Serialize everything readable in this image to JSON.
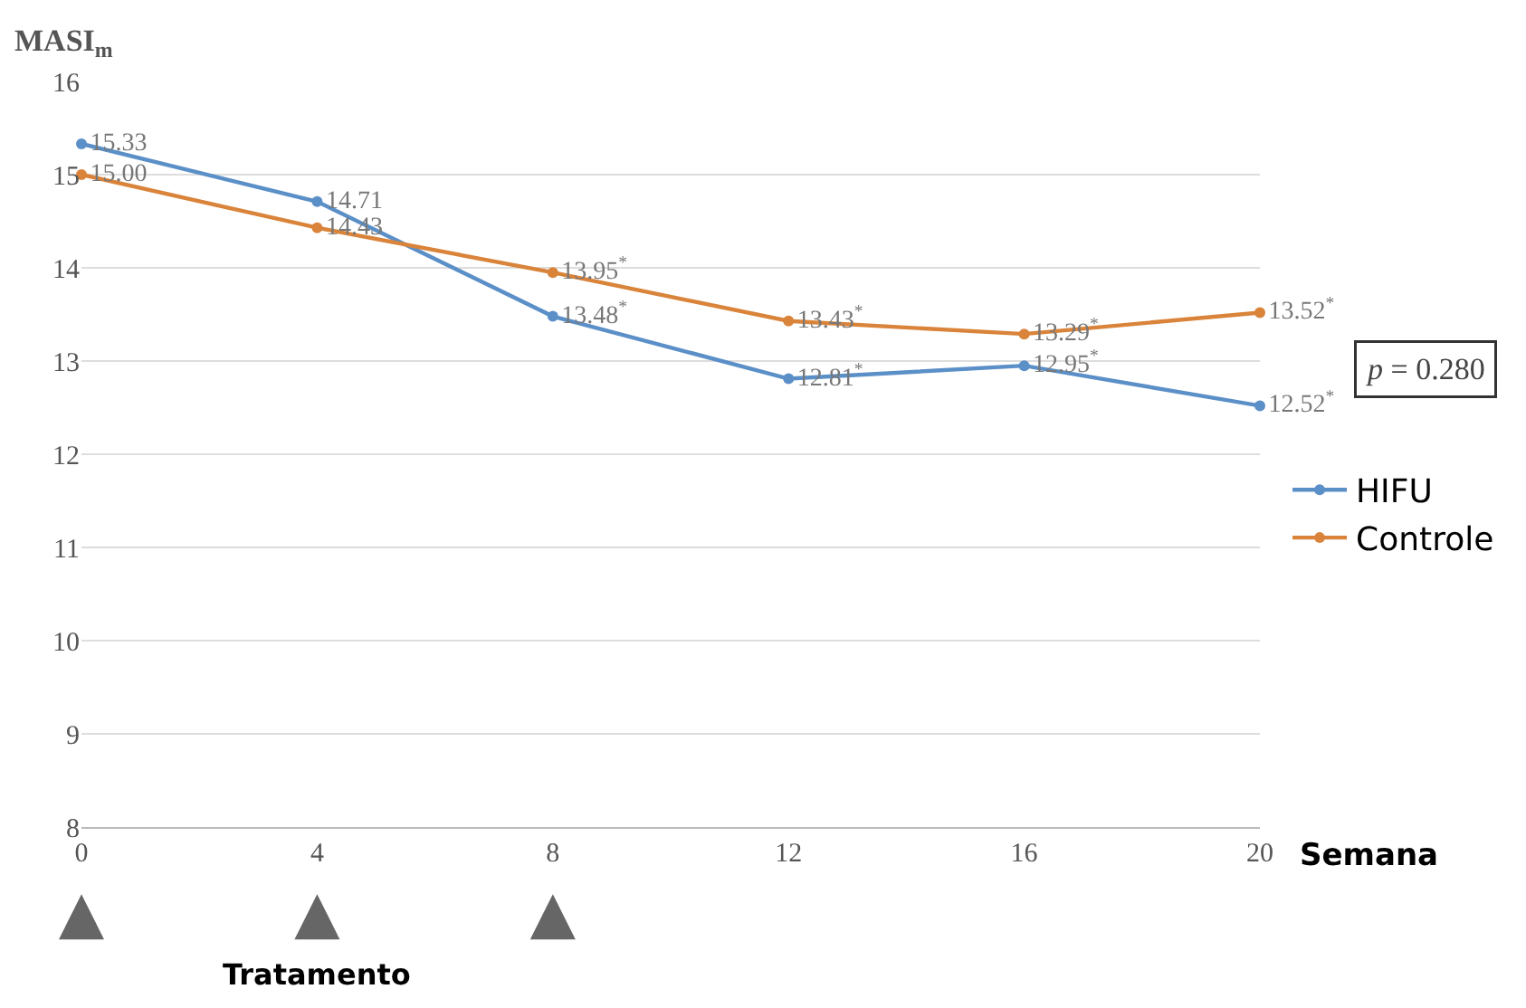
{
  "chart_data": {
    "type": "line",
    "ylabel": "MASI$_{m}$",
    "xlabel": "Semana",
    "x": [
      0,
      4,
      8,
      12,
      16,
      20
    ],
    "series": [
      {
        "name": "HIFU",
        "color": "#5b8fc7",
        "values": [
          15.33,
          14.71,
          13.48,
          12.81,
          12.95,
          12.52
        ],
        "value_labels": [
          "15.33",
          "14.71",
          "13.48$^{*}$",
          "12.81$^{*}$",
          "12.95$^{*}$",
          "12.52$^{*}$"
        ]
      },
      {
        "name": "Controle",
        "color": "#d9843a",
        "values": [
          15.0,
          14.43,
          13.95,
          13.43,
          13.29,
          13.52
        ],
        "value_labels": [
          "15.00",
          "14.43",
          "13.95$^{*}$",
          "13.43$^{*}$",
          "13.29$^{*}$",
          "13.52$^{*}$"
        ]
      }
    ],
    "xlim": [
      0,
      20
    ],
    "xticks": [
      0,
      4,
      8,
      12,
      16,
      20
    ],
    "ylim": [
      8,
      16
    ],
    "yticks": [
      8,
      9,
      10,
      11,
      12,
      13,
      14,
      15,
      16
    ],
    "grid": "y",
    "legend": "right",
    "marker": "circle",
    "line_style": "solid",
    "annotations": [
      "p = 0.280",
      "Tratamento"
    ]
  }
}
